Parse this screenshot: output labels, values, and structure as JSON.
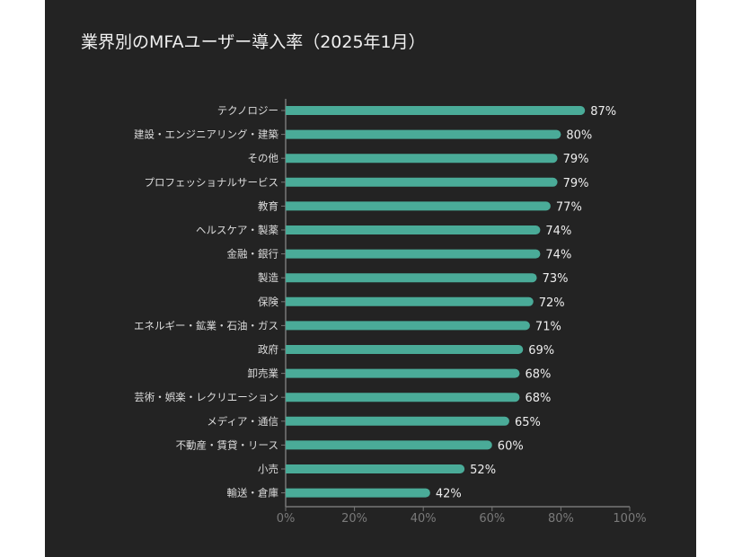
{
  "chart_data": {
    "type": "bar",
    "orientation": "horizontal",
    "title": "業界別のMFAユーザー導入率（2025年1月）",
    "xlabel": "",
    "ylabel": "",
    "xlim": [
      0,
      100
    ],
    "x_ticks": [
      "0%",
      "20%",
      "40%",
      "60%",
      "80%",
      "100%"
    ],
    "grid": false,
    "bar_color": "#4aab98",
    "background": "#232323",
    "categories": [
      "テクノロジー",
      "建設・エンジニアリング・建築",
      "その他",
      "プロフェッショナルサービス",
      "教育",
      "ヘルスケア・製薬",
      "金融・銀行",
      "製造",
      "保険",
      "エネルギー・鉱業・石油・ガス",
      "政府",
      "卸売業",
      "芸術・娯楽・レクリエーション",
      "メディア・通信",
      "不動産・賃貸・リース",
      "小売",
      "輸送・倉庫"
    ],
    "values": [
      87,
      80,
      79,
      79,
      77,
      74,
      74,
      73,
      72,
      71,
      69,
      68,
      68,
      65,
      60,
      52,
      42
    ],
    "value_labels": [
      "87%",
      "80%",
      "79%",
      "79%",
      "77%",
      "74%",
      "74%",
      "73%",
      "72%",
      "71%",
      "69%",
      "68%",
      "68%",
      "65%",
      "60%",
      "52%",
      "42%"
    ]
  }
}
